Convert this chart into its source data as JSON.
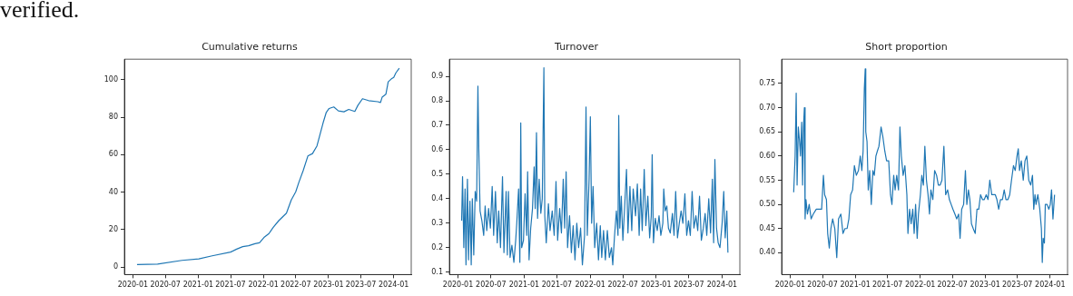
{
  "chart_data": [
    {
      "type": "line",
      "title": "Cumulative returns",
      "annotations": [
        "verified."
      ],
      "color": "#1f77b4",
      "xlim": [
        "2019-11-14",
        "2024-04-08"
      ],
      "ylim": [
        -4,
        111
      ],
      "xticks": [
        "2020-01",
        "2020-07",
        "2021-01",
        "2021-07",
        "2022-01",
        "2022-07",
        "2023-01",
        "2023-07",
        "2024-01"
      ],
      "yticks": [
        0,
        20,
        40,
        60,
        80,
        100
      ],
      "x": [
        "2020-01-24",
        "2020-05-18",
        "2020-10-02",
        "2021-01-04",
        "2021-03-20",
        "2021-07-01",
        "2021-08-04",
        "2021-09-07",
        "2021-10-10",
        "2021-11-15",
        "2021-12-10",
        "2022-01-04",
        "2022-02-01",
        "2022-02-25",
        "2022-03-28",
        "2022-05-10",
        "2022-06-06",
        "2022-07-01",
        "2022-07-18",
        "2022-08-12",
        "2022-09-07",
        "2022-10-03",
        "2022-10-28",
        "2022-11-15",
        "2022-12-01",
        "2022-12-19",
        "2023-01-04",
        "2023-01-30",
        "2023-02-25",
        "2023-03-28",
        "2023-04-24",
        "2023-05-28",
        "2023-06-14",
        "2023-07-10",
        "2023-08-13",
        "2023-10-03",
        "2023-10-19",
        "2023-10-28",
        "2023-11-18",
        "2023-12-01",
        "2023-12-19",
        "2024-01-01",
        "2024-01-13",
        "2024-02-01"
      ],
      "values": [
        1.3,
        1.6,
        3.6,
        4.4,
        6.0,
        8.0,
        9.6,
        10.9,
        11.4,
        12.5,
        13.0,
        15.8,
        17.9,
        21.2,
        24.8,
        28.8,
        35.8,
        40.2,
        45.1,
        51.6,
        59.3,
        60.6,
        64.7,
        71.2,
        76.9,
        82.6,
        84.7,
        85.5,
        83.4,
        82.9,
        84.2,
        83.1,
        86.3,
        89.9,
        88.9,
        88.3,
        87.9,
        90.7,
        92.3,
        98.9,
        100.5,
        101.3,
        103.7,
        106.2
      ]
    },
    {
      "type": "line",
      "title": "Turnover",
      "color": "#1f77b4",
      "xlim": [
        "2019-11-14",
        "2024-04-08"
      ],
      "ylim": [
        0.09,
        0.97
      ],
      "xticks": [
        "2020-01",
        "2020-07",
        "2021-01",
        "2021-07",
        "2022-01",
        "2022-07",
        "2023-01",
        "2023-07",
        "2024-01"
      ],
      "yticks": [
        0.1,
        0.2,
        0.3,
        0.4,
        0.5,
        0.6,
        0.7,
        0.8,
        0.9
      ],
      "x": [
        "2020-01-21",
        "2020-01-26",
        "2020-02-02",
        "2020-02-09",
        "2020-02-14",
        "2020-02-22",
        "2020-02-28",
        "2020-03-07",
        "2020-03-14",
        "2020-03-20",
        "2020-03-28",
        "2020-04-05",
        "2020-04-13",
        "2020-04-20",
        "2020-04-25",
        "2020-05-02",
        "2020-05-12",
        "2020-05-22",
        "2020-05-30",
        "2020-06-08",
        "2020-06-18",
        "2020-06-28",
        "2020-07-08",
        "2020-07-16",
        "2020-07-26",
        "2020-08-05",
        "2020-08-13",
        "2020-08-23",
        "2020-09-03",
        "2020-09-11",
        "2020-09-23",
        "2020-09-30",
        "2020-10-06",
        "2020-10-15",
        "2020-10-25",
        "2020-11-05",
        "2020-11-15",
        "2020-11-21",
        "2020-12-01",
        "2020-12-08",
        "2020-12-13",
        "2020-12-18",
        "2020-12-28",
        "2021-01-06",
        "2021-01-15",
        "2021-01-20",
        "2021-01-28",
        "2021-02-06",
        "2021-02-16",
        "2021-02-25",
        "2021-03-03",
        "2021-03-10",
        "2021-03-16",
        "2021-03-25",
        "2021-04-03",
        "2021-04-11",
        "2021-04-20",
        "2021-04-25",
        "2021-05-03",
        "2021-05-15",
        "2021-05-24",
        "2021-06-05",
        "2021-06-16",
        "2021-06-26",
        "2021-07-05",
        "2021-07-16",
        "2021-07-26",
        "2021-08-05",
        "2021-08-13",
        "2021-08-21",
        "2021-08-29",
        "2021-09-09",
        "2021-09-19",
        "2021-09-29",
        "2021-10-09",
        "2021-10-19",
        "2021-10-29",
        "2021-11-09",
        "2021-11-19",
        "2021-12-01",
        "2021-12-09",
        "2021-12-16",
        "2021-12-26",
        "2022-01-02",
        "2022-01-09",
        "2022-01-17",
        "2022-01-26",
        "2022-02-06",
        "2022-02-16",
        "2022-02-26",
        "2022-03-06",
        "2022-03-16",
        "2022-03-26",
        "2022-04-06",
        "2022-04-17",
        "2022-04-29",
        "2022-05-06",
        "2022-05-16",
        "2022-05-26",
        "2022-06-04",
        "2022-06-08",
        "2022-06-14",
        "2022-06-22",
        "2022-07-01",
        "2022-07-11",
        "2022-07-21",
        "2022-07-29",
        "2022-08-09",
        "2022-08-19",
        "2022-08-27",
        "2022-09-09",
        "2022-09-19",
        "2022-09-29",
        "2022-10-07",
        "2022-10-16",
        "2022-10-27",
        "2022-11-05",
        "2022-11-16",
        "2022-11-26",
        "2022-12-05",
        "2022-12-10",
        "2022-12-17",
        "2022-12-27",
        "2023-01-07",
        "2023-01-17",
        "2023-01-27",
        "2023-02-07",
        "2023-02-12",
        "2023-02-20",
        "2023-03-01",
        "2023-03-10",
        "2023-03-20",
        "2023-04-01",
        "2023-04-10",
        "2023-04-19",
        "2023-04-29",
        "2023-05-09",
        "2023-05-19",
        "2023-05-29",
        "2023-06-09",
        "2023-06-19",
        "2023-06-29",
        "2023-07-09",
        "2023-07-19",
        "2023-07-29",
        "2023-08-09",
        "2023-08-19",
        "2023-08-29",
        "2023-09-08",
        "2023-09-19",
        "2023-09-29",
        "2023-10-08",
        "2023-10-19",
        "2023-10-29",
        "2023-11-08",
        "2023-11-15",
        "2023-11-22",
        "2023-12-01",
        "2023-12-10",
        "2023-12-20",
        "2024-01-01",
        "2024-01-10",
        "2024-01-18",
        "2024-01-27",
        "2024-02-02"
      ],
      "values": [
        0.31,
        0.49,
        0.2,
        0.44,
        0.13,
        0.48,
        0.15,
        0.39,
        0.13,
        0.4,
        0.17,
        0.43,
        0.39,
        0.86,
        0.6,
        0.35,
        0.31,
        0.25,
        0.37,
        0.27,
        0.36,
        0.28,
        0.45,
        0.25,
        0.43,
        0.22,
        0.35,
        0.2,
        0.49,
        0.18,
        0.43,
        0.17,
        0.43,
        0.16,
        0.21,
        0.14,
        0.23,
        0.3,
        0.44,
        0.14,
        0.71,
        0.2,
        0.23,
        0.42,
        0.25,
        0.51,
        0.15,
        0.28,
        0.36,
        0.53,
        0.36,
        0.67,
        0.32,
        0.48,
        0.34,
        0.4,
        0.935,
        0.33,
        0.22,
        0.38,
        0.27,
        0.35,
        0.25,
        0.47,
        0.23,
        0.36,
        0.26,
        0.48,
        0.28,
        0.51,
        0.2,
        0.33,
        0.18,
        0.29,
        0.15,
        0.3,
        0.2,
        0.28,
        0.13,
        0.25,
        0.775,
        0.25,
        0.48,
        0.735,
        0.3,
        0.45,
        0.2,
        0.3,
        0.15,
        0.29,
        0.16,
        0.27,
        0.15,
        0.27,
        0.16,
        0.2,
        0.13,
        0.25,
        0.35,
        0.25,
        0.74,
        0.28,
        0.41,
        0.23,
        0.37,
        0.52,
        0.26,
        0.45,
        0.27,
        0.44,
        0.33,
        0.46,
        0.25,
        0.44,
        0.27,
        0.52,
        0.29,
        0.41,
        0.24,
        0.33,
        0.58,
        0.22,
        0.32,
        0.27,
        0.33,
        0.25,
        0.3,
        0.44,
        0.35,
        0.37,
        0.28,
        0.26,
        0.34,
        0.25,
        0.43,
        0.24,
        0.3,
        0.35,
        0.3,
        0.42,
        0.25,
        0.31,
        0.25,
        0.43,
        0.28,
        0.33,
        0.27,
        0.41,
        0.23,
        0.28,
        0.34,
        0.25,
        0.4,
        0.26,
        0.48,
        0.22,
        0.56,
        0.28,
        0.22,
        0.2,
        0.3,
        0.43,
        0.24,
        0.35,
        0.18
      ]
    },
    {
      "type": "line",
      "title": "Short proportion",
      "color": "#1f77b4",
      "xlim": [
        "2019-11-14",
        "2024-04-08"
      ],
      "ylim": [
        0.355,
        0.8
      ],
      "xticks": [
        "2020-01",
        "2020-07",
        "2021-01",
        "2021-07",
        "2022-01",
        "2022-07",
        "2023-01",
        "2023-07",
        "2024-01"
      ],
      "yticks": [
        {
          "value": 0.4,
          "label": "0.40"
        },
        0.45,
        {
          "value": 0.5,
          "label": "0.50"
        },
        0.55,
        {
          "value": 0.6,
          "label": "0.60"
        },
        0.65,
        {
          "value": 0.7,
          "label": "0.70"
        },
        0.75
      ],
      "x": [
        "2020-01-21",
        "2020-01-29",
        "2020-02-04",
        "2020-02-09",
        "2020-02-16",
        "2020-02-23",
        "2020-02-28",
        "2020-03-06",
        "2020-03-11",
        "2020-03-16",
        "2020-03-21",
        "2020-03-25",
        "2020-03-30",
        "2020-04-07",
        "2020-04-17",
        "2020-04-28",
        "2020-05-10",
        "2020-05-27",
        "2020-06-14",
        "2020-06-26",
        "2020-07-06",
        "2020-07-13",
        "2020-07-23",
        "2020-07-30",
        "2020-08-08",
        "2020-08-17",
        "2020-08-27",
        "2020-09-08",
        "2020-09-19",
        "2020-09-29",
        "2020-10-12",
        "2020-10-24",
        "2020-11-04",
        "2020-11-16",
        "2020-11-26",
        "2020-12-06",
        "2020-12-17",
        "2020-12-27",
        "2021-01-07",
        "2021-01-19",
        "2021-01-29",
        "2021-02-07",
        "2021-02-14",
        "2021-02-21",
        "2021-02-26",
        "2021-03-01",
        "2021-03-08",
        "2021-03-15",
        "2021-03-23",
        "2021-04-01",
        "2021-04-10",
        "2021-04-18",
        "2021-04-27",
        "2021-05-05",
        "2021-05-14",
        "2021-05-26",
        "2021-06-05",
        "2021-06-16",
        "2021-06-26",
        "2021-07-08",
        "2021-07-18",
        "2021-07-26",
        "2021-08-05",
        "2021-08-13",
        "2021-08-22",
        "2021-09-01",
        "2021-09-09",
        "2021-09-17",
        "2021-09-27",
        "2021-10-07",
        "2021-10-18",
        "2021-10-24",
        "2021-11-02",
        "2021-11-11",
        "2021-11-20",
        "2021-11-28",
        "2021-12-06",
        "2021-12-15",
        "2021-12-22",
        "2022-01-02",
        "2022-01-10",
        "2022-01-19",
        "2022-01-27",
        "2022-02-05",
        "2022-02-14",
        "2022-02-22",
        "2022-03-02",
        "2022-03-13",
        "2022-03-23",
        "2022-04-03",
        "2022-04-13",
        "2022-04-23",
        "2022-05-03",
        "2022-05-14",
        "2022-05-24",
        "2022-06-04",
        "2022-06-14",
        "2022-06-24",
        "2022-07-04",
        "2022-07-15",
        "2022-07-25",
        "2022-08-05",
        "2022-08-13",
        "2022-08-22",
        "2022-09-02",
        "2022-09-12",
        "2022-09-20",
        "2022-09-29",
        "2022-10-07",
        "2022-10-16",
        "2022-10-26",
        "2022-11-06",
        "2022-11-16",
        "2022-11-26",
        "2022-12-06",
        "2022-12-17",
        "2022-12-27",
        "2023-01-07",
        "2023-01-17",
        "2023-01-27",
        "2023-02-07",
        "2023-02-17",
        "2023-02-27",
        "2023-03-08",
        "2023-03-18",
        "2023-03-28",
        "2023-04-08",
        "2023-04-18",
        "2023-04-28",
        "2023-05-09",
        "2023-05-19",
        "2023-05-29",
        "2023-06-09",
        "2023-06-19",
        "2023-06-29",
        "2023-07-06",
        "2023-07-13",
        "2023-07-23",
        "2023-08-03",
        "2023-08-13",
        "2023-08-23",
        "2023-09-03",
        "2023-09-14",
        "2023-09-24",
        "2023-10-01",
        "2023-10-08",
        "2023-10-14",
        "2023-10-24",
        "2023-11-04",
        "2023-11-13",
        "2023-11-18",
        "2023-11-23",
        "2023-11-30",
        "2023-12-05",
        "2023-12-15",
        "2023-12-25",
        "2024-01-02",
        "2024-01-09",
        "2024-01-17",
        "2024-01-26"
      ],
      "values": [
        0.525,
        0.6,
        0.73,
        0.54,
        0.66,
        0.63,
        0.6,
        0.67,
        0.54,
        0.66,
        0.7,
        0.47,
        0.51,
        0.48,
        0.5,
        0.47,
        0.48,
        0.49,
        0.49,
        0.49,
        0.56,
        0.52,
        0.51,
        0.44,
        0.41,
        0.45,
        0.47,
        0.45,
        0.39,
        0.47,
        0.48,
        0.44,
        0.45,
        0.45,
        0.47,
        0.52,
        0.53,
        0.58,
        0.56,
        0.57,
        0.6,
        0.57,
        0.61,
        0.74,
        0.78,
        0.65,
        0.63,
        0.53,
        0.57,
        0.5,
        0.57,
        0.56,
        0.6,
        0.61,
        0.62,
        0.66,
        0.64,
        0.61,
        0.59,
        0.59,
        0.52,
        0.5,
        0.56,
        0.53,
        0.56,
        0.53,
        0.66,
        0.6,
        0.56,
        0.58,
        0.52,
        0.44,
        0.49,
        0.46,
        0.49,
        0.44,
        0.5,
        0.43,
        0.48,
        0.52,
        0.56,
        0.54,
        0.62,
        0.55,
        0.52,
        0.48,
        0.53,
        0.51,
        0.57,
        0.56,
        0.54,
        0.54,
        0.55,
        0.62,
        0.52,
        0.53,
        0.51,
        0.5,
        0.49,
        0.48,
        0.47,
        0.48,
        0.43,
        0.49,
        0.5,
        0.57,
        0.5,
        0.53,
        0.51,
        0.46,
        0.45,
        0.44,
        0.49,
        0.49,
        0.52,
        0.51,
        0.51,
        0.52,
        0.51,
        0.55,
        0.52,
        0.52,
        0.52,
        0.51,
        0.49,
        0.51,
        0.51,
        0.53,
        0.51,
        0.51,
        0.52,
        0.55,
        0.58,
        0.57,
        0.6,
        0.615,
        0.57,
        0.59,
        0.55,
        0.59,
        0.6,
        0.55,
        0.54,
        0.56,
        0.49,
        0.52,
        0.5,
        0.52,
        0.49,
        0.45,
        0.38,
        0.43,
        0.42,
        0.5,
        0.5,
        0.49,
        0.5,
        0.53,
        0.47,
        0.52
      ]
    }
  ]
}
